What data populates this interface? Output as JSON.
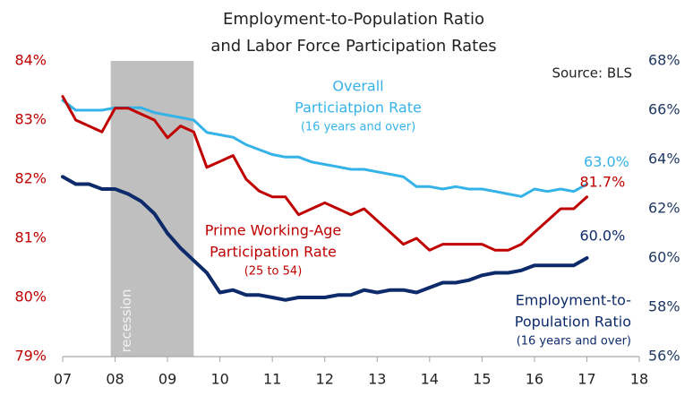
{
  "chart_data": {
    "type": "line",
    "title": [
      "Employment-to-Population Ratio",
      "and Labor Force Participation Rates"
    ],
    "source": "Source: BLS",
    "x": [
      7,
      7.25,
      7.5,
      7.75,
      8,
      8.25,
      8.5,
      8.75,
      9,
      9.25,
      9.5,
      9.75,
      10,
      10.25,
      10.5,
      10.75,
      11,
      11.25,
      11.5,
      11.75,
      12,
      12.25,
      12.5,
      12.75,
      13,
      13.25,
      13.5,
      13.75,
      14,
      14.25,
      14.5,
      14.75,
      15,
      15.25,
      15.5,
      15.75,
      16,
      16.25,
      16.5,
      16.75,
      17
    ],
    "xlim": [
      7,
      18
    ],
    "xticks": [
      {
        "value": 7,
        "label": "07"
      },
      {
        "value": 8,
        "label": "08"
      },
      {
        "value": 9,
        "label": "09"
      },
      10,
      11,
      12,
      13,
      14,
      15,
      16,
      17,
      18
    ],
    "ylim": [
      79,
      84
    ],
    "yticks": [
      {
        "value": 79,
        "label": "79%"
      },
      {
        "value": 80,
        "label": "80%"
      },
      {
        "value": 81,
        "label": "81%"
      },
      {
        "value": 82,
        "label": "82%"
      },
      {
        "value": 83,
        "label": "83%"
      },
      {
        "value": 84,
        "label": "84%"
      }
    ],
    "y2lim": [
      56,
      68
    ],
    "y2ticks": [
      {
        "value": 56,
        "label": "56%"
      },
      {
        "value": 58,
        "label": "58%"
      },
      {
        "value": 60,
        "label": "60%"
      },
      {
        "value": 62,
        "label": "62%"
      },
      {
        "value": 64,
        "label": "64%"
      },
      {
        "value": 66,
        "label": "66%"
      },
      {
        "value": 68,
        "label": "68%"
      }
    ],
    "shaded_regions": [
      {
        "label": "recession",
        "x": [
          7.917,
          9.5
        ],
        "color": "#bfbfbf"
      }
    ],
    "series": [
      {
        "name": [
          "Overall",
          "Particiatpion Rate",
          "(16 years and over)"
        ],
        "color": "#35b3e8",
        "axis": "y2",
        "values": [
          66.4,
          66.0,
          66.0,
          66.0,
          66.1,
          66.1,
          66.1,
          65.9,
          65.8,
          65.7,
          65.6,
          65.1,
          65.0,
          64.9,
          64.6,
          64.4,
          64.2,
          64.1,
          64.1,
          63.9,
          63.8,
          63.7,
          63.6,
          63.6,
          63.5,
          63.4,
          63.3,
          62.9,
          62.9,
          62.8,
          62.9,
          62.8,
          62.8,
          62.7,
          62.6,
          62.5,
          62.8,
          62.7,
          62.8,
          62.7,
          63.0
        ],
        "value_labels": [
          null,
          null,
          null,
          null,
          null,
          null,
          null,
          null,
          null,
          null,
          null,
          null,
          null,
          null,
          null,
          null,
          null,
          null,
          null,
          null,
          null,
          null,
          null,
          null,
          null,
          null,
          null,
          null,
          null,
          null,
          null,
          null,
          null,
          null,
          null,
          null,
          null,
          null,
          null,
          null,
          "63.0%"
        ]
      },
      {
        "name": [
          "Prime Working-Age",
          "Participation Rate",
          "(25 to 54)"
        ],
        "color": "#c00000",
        "values": [
          83.4,
          83.0,
          82.9,
          82.8,
          83.2,
          83.2,
          83.1,
          83.0,
          82.7,
          82.9,
          82.8,
          82.2,
          82.3,
          82.4,
          82.0,
          81.8,
          81.7,
          81.7,
          81.4,
          81.5,
          81.6,
          81.5,
          81.4,
          81.5,
          81.3,
          81.1,
          80.9,
          81.0,
          80.8,
          80.9,
          80.9,
          80.9,
          80.9,
          80.8,
          80.8,
          80.9,
          81.1,
          81.3,
          81.5,
          81.5,
          81.7
        ],
        "value_labels": [
          null,
          null,
          null,
          null,
          null,
          null,
          null,
          null,
          null,
          null,
          null,
          null,
          null,
          null,
          null,
          null,
          null,
          null,
          null,
          null,
          null,
          null,
          null,
          null,
          null,
          null,
          null,
          null,
          null,
          null,
          null,
          null,
          null,
          null,
          null,
          null,
          null,
          null,
          null,
          null,
          "81.7%"
        ]
      },
      {
        "name": [
          "Employment-to-",
          "Population Ratio",
          "(16 years and over)"
        ],
        "color": "#0d2b6b",
        "axis": "y2",
        "values": [
          63.3,
          63.0,
          63.0,
          62.8,
          62.8,
          62.6,
          62.3,
          61.8,
          61.0,
          60.4,
          59.9,
          59.4,
          58.6,
          58.7,
          58.5,
          58.5,
          58.4,
          58.3,
          58.4,
          58.4,
          58.4,
          58.5,
          58.5,
          58.7,
          58.6,
          58.7,
          58.7,
          58.6,
          58.8,
          59.0,
          59.0,
          59.1,
          59.3,
          59.4,
          59.4,
          59.5,
          59.7,
          59.7,
          59.7,
          59.7,
          60.0
        ],
        "value_labels": [
          null,
          null,
          null,
          null,
          null,
          null,
          null,
          null,
          null,
          null,
          null,
          null,
          null,
          null,
          null,
          null,
          null,
          null,
          null,
          null,
          null,
          null,
          null,
          null,
          null,
          null,
          null,
          null,
          null,
          null,
          null,
          null,
          null,
          null,
          null,
          null,
          null,
          null,
          null,
          null,
          "60.0%"
        ]
      }
    ]
  }
}
